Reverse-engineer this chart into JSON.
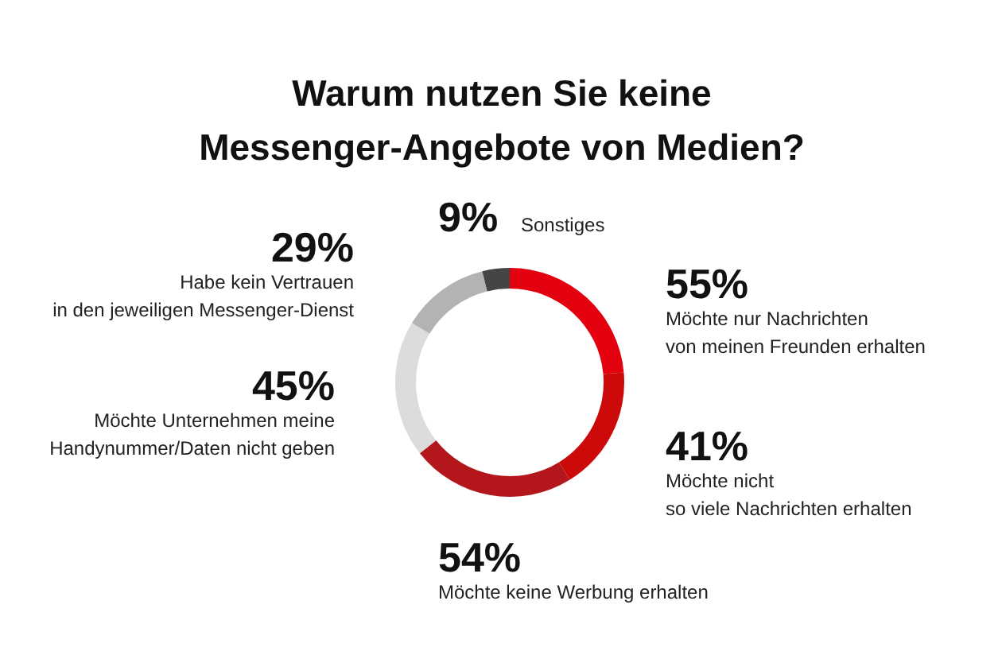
{
  "chart_data": {
    "type": "donut",
    "title": "Warum nutzen Sie keine\nMessenger-Angebote von Medien?",
    "categories": [
      "Möchte nur Nachrichten\nvon meinen Freunden erhalten",
      "Möchte nicht\nso viele Nachrichten erhalten",
      "Möchte keine Werbung erhalten",
      "Möchte Unternehmen meine\nHandynummer/Daten nicht geben",
      "Habe kein Vertrauen\nin den jeweiligen Messenger-Dienst",
      "Sonstiges"
    ],
    "values": [
      55,
      41,
      54,
      45,
      29,
      9
    ],
    "colors": [
      "#e3000f",
      "#cc0a0a",
      "#b3161b",
      "#dcdcdc",
      "#b3b3b3",
      "#454545"
    ],
    "value_labels": [
      "55%",
      "41%",
      "54%",
      "45%",
      "29%",
      "9%"
    ]
  }
}
